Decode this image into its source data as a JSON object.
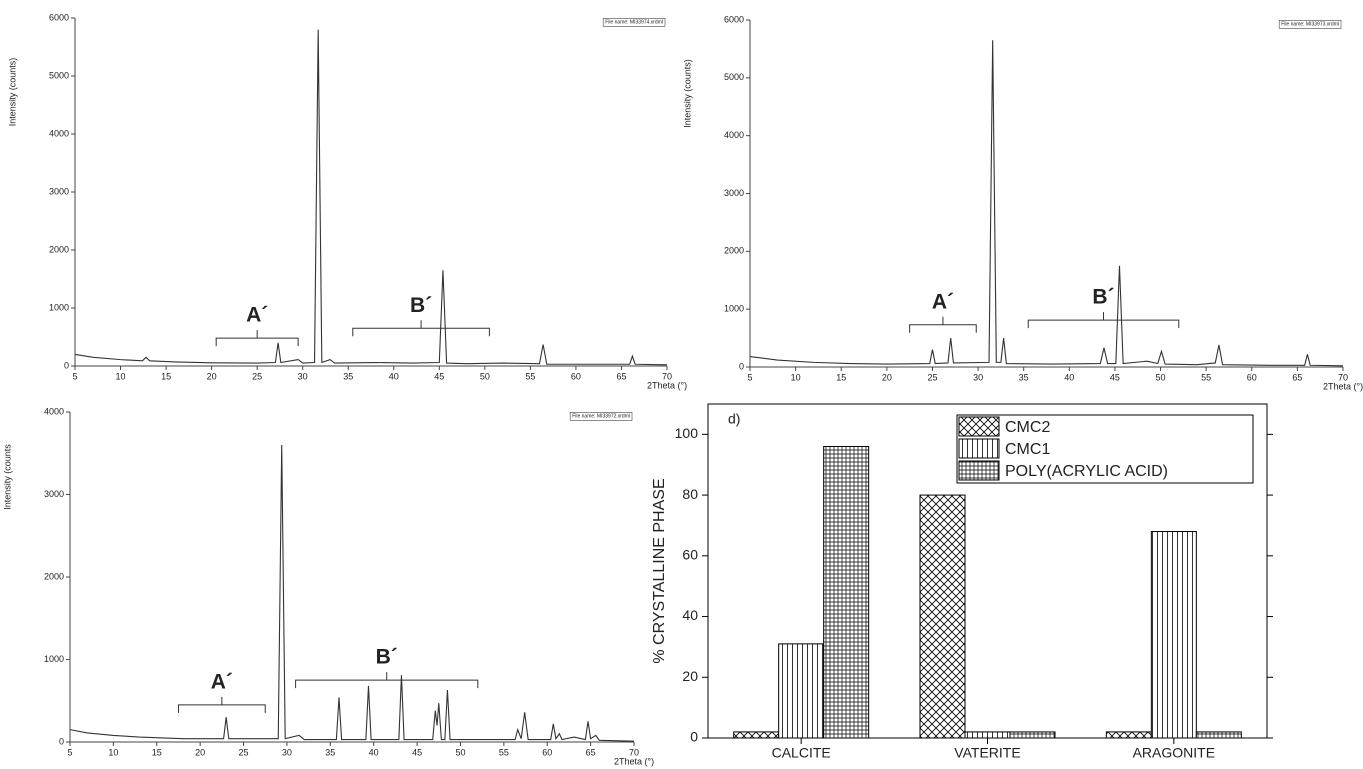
{
  "chart_data": [
    {
      "type": "line",
      "color": "#333333",
      "xlabel": "2Theta (°)",
      "ylabel": "Intensity (counts)",
      "file_label": "File name: MI33974.xrdml",
      "xlim": [
        5,
        70
      ],
      "xticks": [
        5,
        10,
        15,
        20,
        25,
        30,
        35,
        40,
        45,
        50,
        55,
        60,
        65,
        70
      ],
      "ylim": [
        0,
        6000
      ],
      "yticks": [
        0,
        1000,
        2000,
        3000,
        4000,
        5000,
        6000
      ],
      "x": [
        5,
        7,
        10,
        12.4,
        12.8,
        13.2,
        16,
        20,
        25,
        27,
        27.3,
        27.6,
        29.5,
        30,
        31.3,
        31.7,
        32.1,
        33,
        33.5,
        38,
        42,
        45,
        45.4,
        45.8,
        48,
        52,
        56,
        56.4,
        56.8,
        60,
        65.9,
        66.2,
        66.5,
        70
      ],
      "values": [
        200,
        150,
        110,
        90,
        150,
        90,
        70,
        55,
        50,
        60,
        400,
        60,
        110,
        50,
        60,
        5800,
        60,
        110,
        50,
        60,
        50,
        60,
        1650,
        50,
        40,
        50,
        40,
        370,
        30,
        30,
        30,
        170,
        30,
        20
      ],
      "annotations": [
        {
          "text": "A´",
          "x": [
            20.5,
            29.5
          ],
          "y": 480
        },
        {
          "text": "B´",
          "x": [
            35.5,
            50.5
          ],
          "y": 650
        }
      ]
    },
    {
      "type": "line",
      "color": "#333333",
      "xlabel": "2Theta (°)",
      "ylabel": "Intensity (counts)",
      "file_label": "File name: MI33973.xrdml",
      "xlim": [
        5,
        70
      ],
      "xticks": [
        5,
        10,
        15,
        20,
        25,
        30,
        35,
        40,
        45,
        50,
        55,
        60,
        65,
        70
      ],
      "ylim": [
        0,
        6000
      ],
      "yticks": [
        0,
        1000,
        2000,
        3000,
        4000,
        5000,
        6000
      ],
      "x": [
        5,
        8,
        12,
        16,
        20,
        24.7,
        25,
        25.3,
        26.7,
        27,
        27.3,
        31.2,
        31.6,
        32,
        32.5,
        32.8,
        33.1,
        38,
        43.4,
        43.8,
        44.2,
        45.1,
        45.5,
        45.9,
        48.5,
        49.7,
        50.1,
        50.5,
        54,
        56,
        56.4,
        56.8,
        62,
        65.8,
        66.1,
        66.4,
        70
      ],
      "values": [
        180,
        120,
        80,
        60,
        50,
        60,
        300,
        60,
        70,
        500,
        70,
        80,
        5650,
        80,
        80,
        500,
        60,
        50,
        60,
        330,
        60,
        60,
        1750,
        60,
        100,
        60,
        270,
        50,
        40,
        70,
        380,
        40,
        30,
        30,
        220,
        30,
        20
      ],
      "annotations": [
        {
          "text": "A´",
          "x": [
            22.5,
            29.8
          ],
          "y": 730
        },
        {
          "text": "B´",
          "x": [
            35.5,
            52
          ],
          "y": 810
        }
      ]
    },
    {
      "type": "line",
      "color": "#333333",
      "xlabel": "2Theta (°)",
      "ylabel": "Intensity (counts",
      "file_label": "File name: MI33972.xrdml",
      "xlim": [
        5,
        70
      ],
      "xticks": [
        5,
        10,
        15,
        20,
        25,
        30,
        35,
        40,
        45,
        50,
        55,
        60,
        65,
        70
      ],
      "ylim": [
        0,
        4000
      ],
      "yticks": [
        0,
        1000,
        2000,
        3000,
        4000
      ],
      "x": [
        5,
        7,
        10,
        13,
        18,
        22.7,
        23,
        23.3,
        29,
        29.4,
        29.8,
        31.4,
        32,
        35.7,
        36,
        36.3,
        39.1,
        39.4,
        39.7,
        42.9,
        43.2,
        43.5,
        46.8,
        47.1,
        47.3,
        47.5,
        47.8,
        48.2,
        48.5,
        48.8,
        56.3,
        56.6,
        57,
        57.4,
        57.8,
        60.4,
        60.7,
        61,
        61.4,
        61.7,
        63.1,
        64.4,
        64.7,
        65,
        65.6,
        66,
        70
      ],
      "values": [
        150,
        110,
        80,
        60,
        40,
        40,
        300,
        40,
        40,
        3600,
        40,
        80,
        30,
        30,
        540,
        30,
        30,
        680,
        30,
        30,
        810,
        30,
        30,
        380,
        200,
        470,
        30,
        30,
        630,
        30,
        30,
        150,
        40,
        360,
        30,
        30,
        220,
        40,
        100,
        30,
        60,
        30,
        250,
        40,
        80,
        20,
        10
      ],
      "annotations": [
        {
          "text": "A´",
          "x": [
            17.5,
            27.5
          ],
          "y": 450
        },
        {
          "text": "B´",
          "x": [
            31,
            52
          ],
          "y": 750
        }
      ]
    },
    {
      "type": "bar",
      "panel_label": "d)",
      "ylabel": "% CRYSTALLINE  PHASE",
      "categories": [
        "CALCITE",
        "VATERITE",
        "ARAGONITE"
      ],
      "ylim": [
        0,
        110
      ],
      "yticks": [
        0,
        20,
        40,
        60,
        80,
        100
      ],
      "series": [
        {
          "name": "CMC2",
          "color": "#000000",
          "hatch": "crosshatch",
          "values": [
            2,
            80,
            2
          ]
        },
        {
          "name": "CMC1",
          "color": "#000000",
          "hatch": "vertical",
          "values": [
            31,
            2,
            68
          ]
        },
        {
          "name": "POLY(ACRYLIC ACID)",
          "color": "#000000",
          "hatch": "grid",
          "values": [
            96,
            2,
            2
          ]
        }
      ]
    }
  ]
}
